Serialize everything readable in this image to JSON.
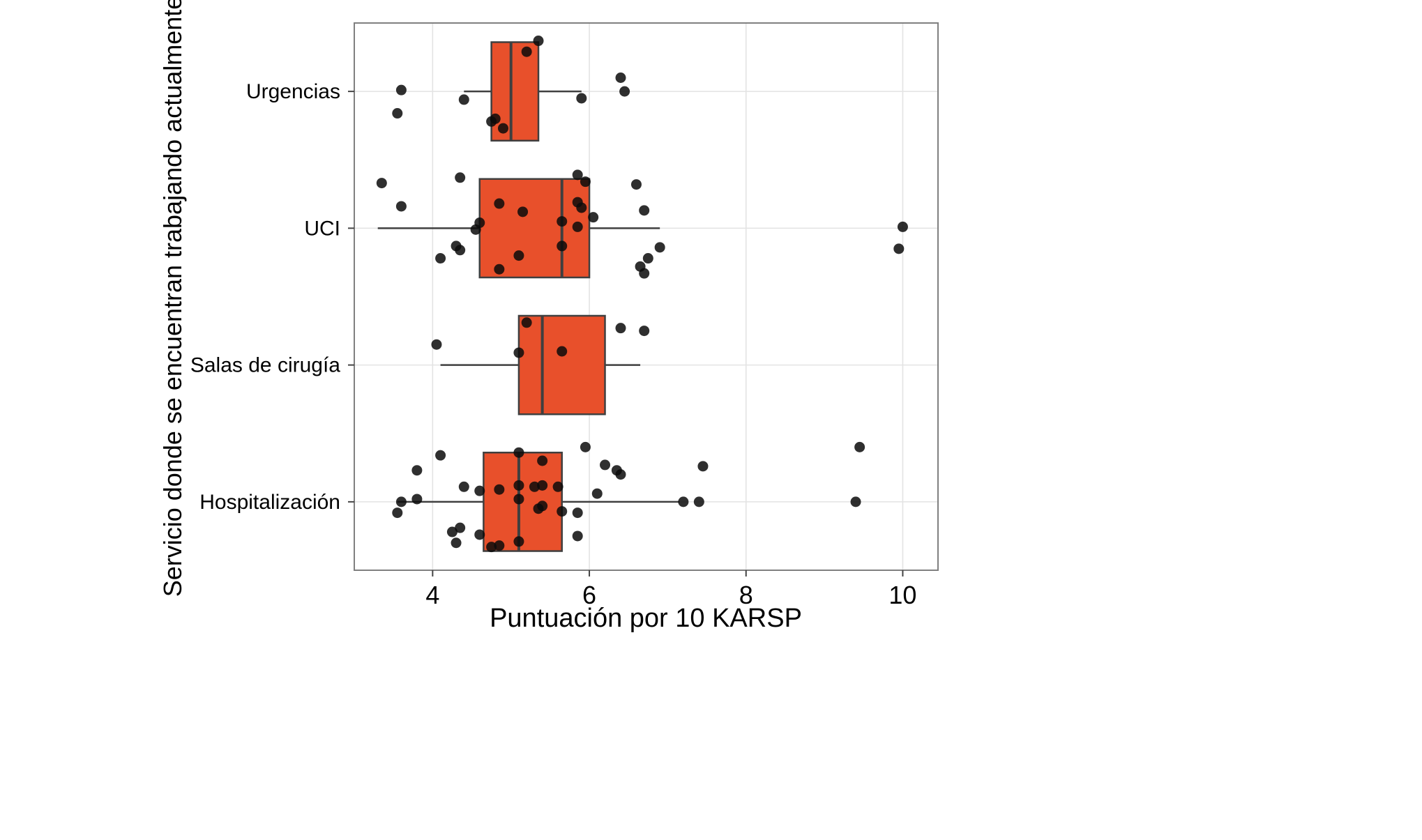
{
  "chart_data": {
    "type": "boxplot",
    "orientation": "horizontal",
    "xlabel": "Puntuación por 10 KARSP",
    "ylabel": "Servicio donde se encuentran trabajando actualmente",
    "xlim": [
      3.0,
      10.45
    ],
    "xticks": [
      4,
      6,
      8,
      10
    ],
    "grid": "on",
    "legend": "none",
    "categories": [
      "Urgencias",
      "UCI",
      "Salas de cirugía",
      "Hospitalización"
    ],
    "colors": {
      "box": "#E8502B",
      "stroke": "#3F3F3F",
      "point": "#0A0A0A",
      "grid": "#E3E3E3",
      "border": "#7F7F7F",
      "text": "#000000"
    },
    "series": [
      {
        "category": "Urgencias",
        "whisker_low": 4.4,
        "q1": 4.75,
        "median": 5.0,
        "q3": 5.35,
        "whisker_high": 5.9,
        "points": [
          [
            5.35,
            -0.37
          ],
          [
            5.2,
            -0.29
          ],
          [
            6.4,
            -0.1
          ],
          [
            6.45,
            0.0
          ],
          [
            3.6,
            -0.01
          ],
          [
            5.9,
            0.05
          ],
          [
            4.4,
            0.06
          ],
          [
            3.55,
            0.16
          ],
          [
            4.8,
            0.2
          ],
          [
            4.75,
            0.22
          ],
          [
            4.9,
            0.27
          ]
        ]
      },
      {
        "category": "UCI",
        "whisker_low": 3.3,
        "q1": 4.6,
        "median": 5.65,
        "q3": 6.0,
        "whisker_high": 6.9,
        "points": [
          [
            3.35,
            -0.33
          ],
          [
            4.35,
            -0.37
          ],
          [
            5.85,
            -0.39
          ],
          [
            5.95,
            -0.34
          ],
          [
            6.6,
            -0.32
          ],
          [
            3.6,
            -0.16
          ],
          [
            4.85,
            -0.18
          ],
          [
            5.15,
            -0.12
          ],
          [
            5.85,
            -0.19
          ],
          [
            5.9,
            -0.15
          ],
          [
            6.7,
            -0.13
          ],
          [
            5.65,
            -0.05
          ],
          [
            6.05,
            -0.08
          ],
          [
            5.85,
            -0.01
          ],
          [
            4.6,
            -0.04
          ],
          [
            4.55,
            0.01
          ],
          [
            10.0,
            -0.01
          ],
          [
            4.3,
            0.13
          ],
          [
            4.35,
            0.16
          ],
          [
            5.65,
            0.13
          ],
          [
            6.9,
            0.14
          ],
          [
            9.95,
            0.15
          ],
          [
            4.1,
            0.22
          ],
          [
            5.1,
            0.2
          ],
          [
            6.75,
            0.22
          ],
          [
            4.85,
            0.3
          ],
          [
            6.65,
            0.28
          ],
          [
            6.7,
            0.33
          ]
        ]
      },
      {
        "category": "Salas de cirugía",
        "whisker_low": 4.1,
        "q1": 5.1,
        "median": 5.4,
        "q3": 6.2,
        "whisker_high": 6.65,
        "points": [
          [
            5.2,
            -0.31
          ],
          [
            6.4,
            -0.27
          ],
          [
            6.7,
            -0.25
          ],
          [
            4.05,
            -0.15
          ],
          [
            5.1,
            -0.09
          ],
          [
            5.65,
            -0.1
          ]
        ]
      },
      {
        "category": "Hospitalización",
        "whisker_low": 3.55,
        "q1": 4.65,
        "median": 5.1,
        "q3": 5.65,
        "whisker_high": 7.15,
        "points": [
          [
            5.95,
            -0.4
          ],
          [
            9.45,
            -0.4
          ],
          [
            4.1,
            -0.34
          ],
          [
            5.1,
            -0.36
          ],
          [
            5.4,
            -0.3
          ],
          [
            3.8,
            -0.23
          ],
          [
            6.2,
            -0.27
          ],
          [
            6.35,
            -0.23
          ],
          [
            6.4,
            -0.2
          ],
          [
            7.45,
            -0.26
          ],
          [
            4.4,
            -0.11
          ],
          [
            4.6,
            -0.08
          ],
          [
            4.85,
            -0.09
          ],
          [
            5.1,
            -0.12
          ],
          [
            5.3,
            -0.11
          ],
          [
            5.4,
            -0.12
          ],
          [
            5.6,
            -0.11
          ],
          [
            6.1,
            -0.06
          ],
          [
            3.6,
            0.0
          ],
          [
            3.8,
            -0.02
          ],
          [
            5.1,
            -0.02
          ],
          [
            5.35,
            0.05
          ],
          [
            5.4,
            0.03
          ],
          [
            5.65,
            0.07
          ],
          [
            5.85,
            0.08
          ],
          [
            7.2,
            0.0
          ],
          [
            7.4,
            0.0
          ],
          [
            9.4,
            0.0
          ],
          [
            3.55,
            0.08
          ],
          [
            4.35,
            0.19
          ],
          [
            4.25,
            0.22
          ],
          [
            4.6,
            0.24
          ],
          [
            4.85,
            0.32
          ],
          [
            4.75,
            0.33
          ],
          [
            5.1,
            0.29
          ],
          [
            5.85,
            0.25
          ],
          [
            4.3,
            0.3
          ]
        ]
      }
    ]
  }
}
